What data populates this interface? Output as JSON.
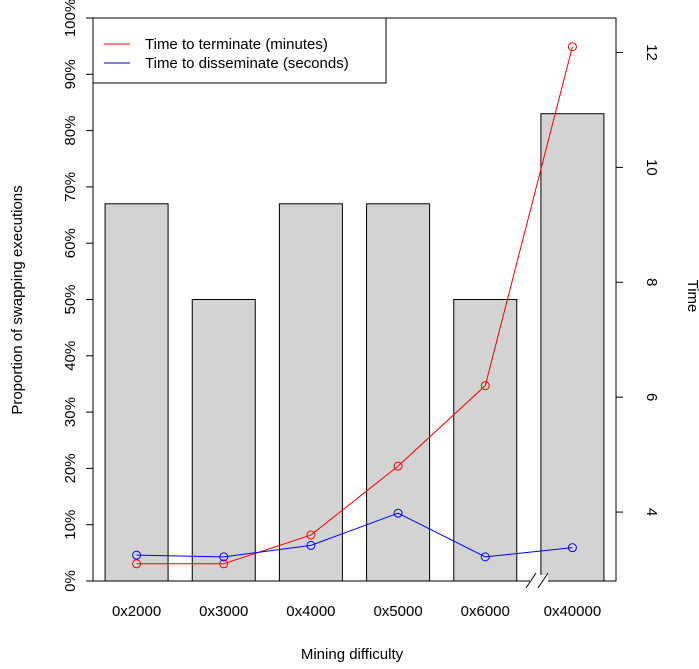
{
  "chart_data": {
    "type": "bar",
    "title": "",
    "categories": [
      "0x2000",
      "0x3000",
      "0x4000",
      "0x5000",
      "0x6000",
      "0x40000"
    ],
    "xlabel": "Mining difficulty",
    "ylabel": "Proportion of swapping executions",
    "y2label": "Time",
    "ylim": [
      0,
      100
    ],
    "y2lim": [
      2.8,
      12.6
    ],
    "yticks": [
      "0%",
      "10%",
      "20%",
      "30%",
      "40%",
      "50%",
      "60%",
      "70%",
      "80%",
      "90%",
      "100%"
    ],
    "y2ticks": [
      "4",
      "6",
      "8",
      "10",
      "12"
    ],
    "bars": {
      "values": [
        67,
        50,
        67,
        67,
        50,
        83
      ],
      "color": "#d3d3d3"
    },
    "series": [
      {
        "name": "Time to terminate (minutes)",
        "axis": "right",
        "color": "#ff0000",
        "values": [
          3.1,
          3.1,
          3.6,
          4.8,
          6.2,
          12.1
        ]
      },
      {
        "name": "Time to disseminate (seconds)",
        "axis": "right",
        "color": "#0000ff",
        "values": [
          3.25,
          3.22,
          3.42,
          3.98,
          3.22,
          3.38
        ]
      }
    ],
    "axis_break": "between 0x6000 and 0x40000 on x-axis",
    "legend_position": "top-left",
    "grid": false
  }
}
